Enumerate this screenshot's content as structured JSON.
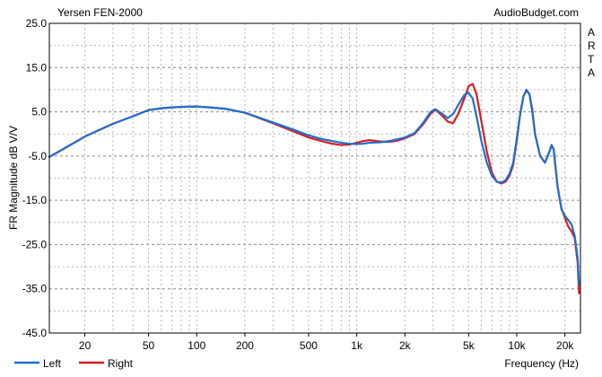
{
  "header": {
    "title": "Yersen FEN-2000",
    "source": "AudioBudget.com",
    "side_label": "A R T A"
  },
  "colors": {
    "left": "#1f6fd1",
    "right": "#d81e1e",
    "grid": "#8a8a8a",
    "frame": "#000000"
  },
  "chart_data": {
    "type": "line",
    "title": "Yersen FEN-2000",
    "xlabel": "Frequency (Hz)",
    "ylabel": "FR Magnitude dB V/V",
    "xscale": "log",
    "xlim": [
      12,
      25000
    ],
    "ylim": [
      -45,
      25
    ],
    "grid": true,
    "legend_position": "bottom-left",
    "x_ticks": [
      {
        "value": 20,
        "label": "20"
      },
      {
        "value": 50,
        "label": "50"
      },
      {
        "value": 100,
        "label": "100"
      },
      {
        "value": 200,
        "label": "200"
      },
      {
        "value": 500,
        "label": "500"
      },
      {
        "value": 1000,
        "label": "1k"
      },
      {
        "value": 2000,
        "label": "2k"
      },
      {
        "value": 5000,
        "label": "5k"
      },
      {
        "value": 10000,
        "label": "10k"
      },
      {
        "value": 20000,
        "label": "20k"
      }
    ],
    "y_ticks": [
      {
        "value": 25,
        "label": "25.0"
      },
      {
        "value": 15,
        "label": "15.0"
      },
      {
        "value": 5,
        "label": "5.0"
      },
      {
        "value": -5,
        "label": "-5.0"
      },
      {
        "value": -15,
        "label": "-15.0"
      },
      {
        "value": -25,
        "label": "-25.0"
      },
      {
        "value": -35,
        "label": "-35.0"
      },
      {
        "value": -45,
        "label": "-45.0"
      }
    ],
    "series": [
      {
        "name": "Left",
        "color": "#1f6fd1",
        "x": [
          12,
          15,
          20,
          25,
          30,
          40,
          50,
          60,
          70,
          80,
          100,
          120,
          150,
          200,
          300,
          400,
          500,
          600,
          700,
          800,
          900,
          1000,
          1100,
          1200,
          1400,
          1600,
          1800,
          2000,
          2300,
          2600,
          2900,
          3100,
          3400,
          3700,
          4000,
          4300,
          4700,
          5000,
          5300,
          5600,
          6000,
          6500,
          7000,
          7500,
          8000,
          8500,
          9000,
          9500,
          10000,
          10500,
          11000,
          11500,
          12000,
          12500,
          13000,
          14000,
          15000,
          16000,
          16500,
          17000,
          18000,
          19000,
          20000,
          21000,
          22000,
          23000,
          24000,
          24500
        ],
        "y": [
          -5.2,
          -3.2,
          -0.6,
          1.0,
          2.3,
          4.0,
          5.4,
          5.8,
          6.0,
          6.1,
          6.2,
          6.0,
          5.7,
          4.8,
          2.6,
          1.0,
          -0.3,
          -1.1,
          -1.6,
          -2.0,
          -2.2,
          -2.3,
          -2.2,
          -2.0,
          -1.9,
          -1.6,
          -1.2,
          -0.8,
          0.2,
          2.5,
          5.0,
          5.6,
          4.6,
          3.6,
          4.5,
          6.5,
          8.8,
          9.3,
          8.0,
          4.0,
          -1.5,
          -6.5,
          -9.5,
          -10.8,
          -11.0,
          -10.5,
          -9.0,
          -6.5,
          -1.0,
          4.5,
          8.5,
          10.0,
          9.0,
          5.0,
          0.0,
          -5.0,
          -6.5,
          -4.0,
          -2.5,
          -3.5,
          -12.0,
          -17.0,
          -18.5,
          -19.5,
          -20.5,
          -23.0,
          -28.0,
          -34.0
        ]
      },
      {
        "name": "Right",
        "color": "#d81e1e",
        "x": [
          12,
          15,
          20,
          25,
          30,
          40,
          50,
          60,
          70,
          80,
          100,
          120,
          150,
          200,
          300,
          400,
          500,
          600,
          700,
          800,
          900,
          1000,
          1100,
          1200,
          1400,
          1600,
          1800,
          2000,
          2300,
          2600,
          2900,
          3100,
          3400,
          3700,
          4000,
          4300,
          4700,
          5000,
          5300,
          5600,
          6000,
          6500,
          7000,
          7500,
          8000,
          8500,
          9000,
          9500,
          10000,
          10500,
          11000,
          11500,
          12000,
          12500,
          13000,
          14000,
          15000,
          16000,
          16500,
          17000,
          18000,
          19000,
          20000,
          21000,
          22000,
          23000,
          24000,
          24500
        ],
        "y": [
          -5.2,
          -3.2,
          -0.6,
          1.0,
          2.3,
          4.0,
          5.4,
          5.8,
          6.0,
          6.1,
          6.2,
          6.0,
          5.7,
          4.8,
          2.4,
          0.6,
          -0.8,
          -1.6,
          -2.2,
          -2.5,
          -2.4,
          -2.0,
          -1.6,
          -1.4,
          -1.7,
          -1.8,
          -1.5,
          -1.0,
          0.0,
          2.2,
          4.6,
          5.5,
          4.2,
          2.8,
          2.4,
          4.5,
          8.0,
          10.8,
          11.3,
          9.0,
          3.0,
          -4.0,
          -8.8,
          -10.8,
          -11.2,
          -10.8,
          -9.5,
          -7.0,
          -1.5,
          4.5,
          8.5,
          9.8,
          9.0,
          5.5,
          0.0,
          -5.0,
          -6.5,
          -4.0,
          -2.5,
          -3.5,
          -12.0,
          -16.8,
          -19.0,
          -21.0,
          -22.0,
          -23.5,
          -29.0,
          -36.0
        ]
      }
    ]
  }
}
